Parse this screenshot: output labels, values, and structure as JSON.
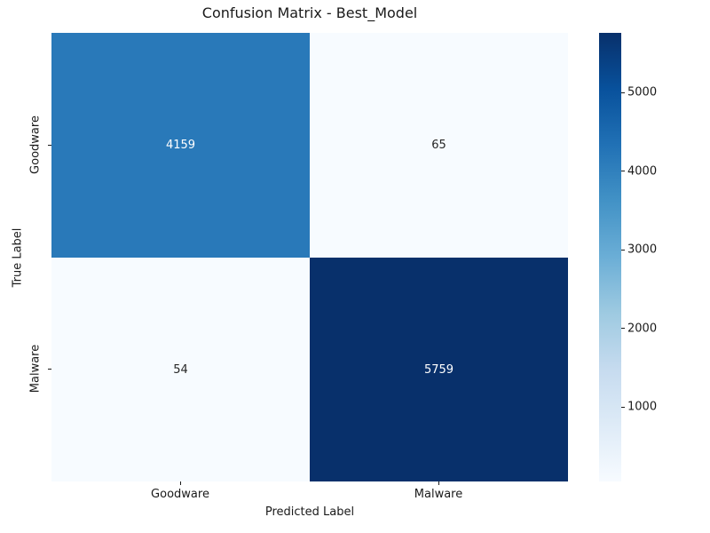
{
  "title": "Confusion Matrix - Best_Model",
  "chart_data": {
    "type": "heatmap",
    "title": "Confusion Matrix - Best_Model",
    "xlabel": "Predicted Label",
    "ylabel": "True Label",
    "x_categories": [
      "Goodware",
      "Malware"
    ],
    "y_categories": [
      "Goodware",
      "Malware"
    ],
    "matrix": [
      [
        4159,
        65
      ],
      [
        54,
        5759
      ]
    ],
    "vmin": 54,
    "vmax": 5759,
    "colormap": "Blues",
    "grid": false,
    "legend_position": "colorbar-right",
    "cell_colors": [
      [
        "#2979b9",
        "#f7fbff"
      ],
      [
        "#f7fbff",
        "#08306b"
      ]
    ],
    "cell_text_colors": [
      [
        "#ffffff",
        "#262626"
      ],
      [
        "#262626",
        "#ffffff"
      ]
    ],
    "colorbar": {
      "ticks": [
        1000,
        2000,
        3000,
        4000,
        5000
      ],
      "gradient_stops": [
        {
          "pos": 0.0,
          "color": "#f7fbff"
        },
        {
          "pos": 0.125,
          "color": "#deebf7"
        },
        {
          "pos": 0.25,
          "color": "#c6dbef"
        },
        {
          "pos": 0.375,
          "color": "#9ecae1"
        },
        {
          "pos": 0.5,
          "color": "#6baed6"
        },
        {
          "pos": 0.625,
          "color": "#4292c6"
        },
        {
          "pos": 0.75,
          "color": "#2171b5"
        },
        {
          "pos": 0.875,
          "color": "#08519c"
        },
        {
          "pos": 1.0,
          "color": "#08306b"
        }
      ]
    }
  }
}
